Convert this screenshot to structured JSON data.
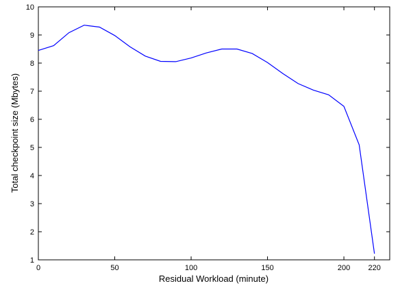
{
  "chart_data": {
    "type": "line",
    "xlabel": "Residual Workload (minute)",
    "ylabel": "Total checkpoint size (Mbytes)",
    "xlim": [
      0,
      230
    ],
    "ylim": [
      1,
      10
    ],
    "xticks": [
      0,
      50,
      100,
      150,
      200,
      220
    ],
    "yticks": [
      1,
      2,
      3,
      4,
      5,
      6,
      7,
      8,
      9,
      10
    ],
    "grid": false,
    "line_color": "#0000ff",
    "series": [
      {
        "x": [
          0,
          10,
          20,
          30,
          40,
          50,
          60,
          70,
          80,
          90,
          100,
          110,
          120,
          130,
          140,
          150,
          160,
          170,
          180,
          190,
          200,
          210,
          220
        ],
        "values": [
          8.45,
          8.62,
          9.08,
          9.35,
          9.28,
          8.98,
          8.58,
          8.25,
          8.06,
          8.05,
          8.18,
          8.36,
          8.5,
          8.5,
          8.34,
          8.02,
          7.63,
          7.27,
          7.04,
          6.87,
          6.46,
          5.09,
          1.22
        ]
      }
    ]
  }
}
